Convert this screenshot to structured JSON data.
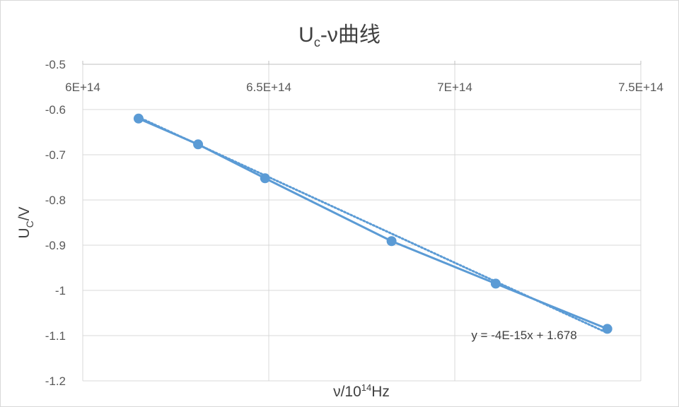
{
  "chart_data": {
    "type": "scatter",
    "title": {
      "main": "U",
      "sub": "c",
      "rest": "-ν曲线"
    },
    "ylabel": {
      "main": "U",
      "sub": "C",
      "rest": "/V"
    },
    "xlabel": {
      "pre": "ν/10",
      "sup": "14",
      "post": "Hz"
    },
    "xlim": [
      600000000000000.0,
      750000000000000.0
    ],
    "ylim": [
      -1.2,
      -0.5
    ],
    "x_ticks": [
      600000000000000.0,
      650000000000000.0,
      700000000000000.0,
      750000000000000.0
    ],
    "x_tick_labels": [
      "6E+14",
      "6.5E+14",
      "7E+14",
      "7.5E+14"
    ],
    "y_ticks": [
      -0.5,
      -0.6,
      -0.7,
      -0.8,
      -0.9,
      -1.0,
      -1.1,
      -1.2
    ],
    "y_tick_labels": [
      "-0.5",
      "-0.6",
      "-0.7",
      "-0.8",
      "-0.9",
      "-1",
      "-1.1",
      "-1.2"
    ],
    "x_axis_position": "top",
    "grid": true,
    "series": [
      {
        "x": [
          615000000000000.0,
          631000000000000.0,
          649000000000000.0,
          683000000000000.0,
          711000000000000.0,
          741000000000000.0
        ],
        "y": [
          -0.62,
          -0.677,
          -0.752,
          -0.891,
          -0.985,
          -1.085
        ],
        "color": "#5b9bd5",
        "markers": true,
        "line": "solid"
      }
    ],
    "trendline": {
      "type": "linear",
      "slope": -4e-15,
      "intercept": 1.678,
      "x_range": [
        615000000000000.0,
        741000000000000.0
      ],
      "fit_endpoints_y": [
        -0.617,
        -1.094
      ],
      "style": "dotted",
      "color": "#5b9bd5",
      "equation_label": "y = -4E-15x + 1.678"
    }
  }
}
